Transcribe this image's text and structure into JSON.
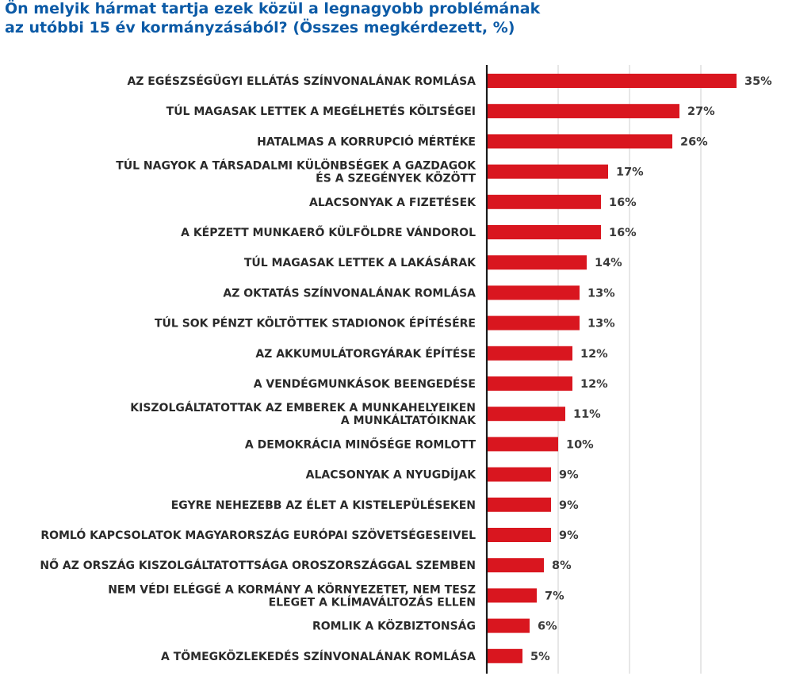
{
  "title_lines": [
    "Ön melyik hármat tartja ezek közül a legnagyobb problémának",
    "az utóbbi 15 év kormányzásából? (Összes megkérdezett, %)"
  ],
  "colors": {
    "bar": "#d9161f",
    "title": "#0b5aa6",
    "text": "#2a2a2a"
  },
  "chart_data": {
    "type": "bar",
    "orientation": "horizontal",
    "title": "Ön melyik hármat tartja ezek közül a legnagyobb problémának az utóbbi 15 év kormányzásából? (Összes megkérdezett, %)",
    "xlim": [
      0,
      35
    ],
    "grid": true,
    "categories": [
      [
        "AZ EGÉSZSÉGÜGYI ELLÁTÁS SZÍNVONALÁNAK ROMLÁSA"
      ],
      [
        "TÚL MAGASAK LETTEK A MEGÉLHETÉS KÖLTSÉGEI"
      ],
      [
        "HATALMAS A KORRUPCIÓ MÉRTÉKE"
      ],
      [
        "TÚL NAGYOK A TÁRSADALMI KÜLÖNBSÉGEK A GAZDAGOK",
        "ÉS A SZEGÉNYEK KÖZÖTT"
      ],
      [
        "ALACSONYAK A FIZETÉSEK"
      ],
      [
        "A KÉPZETT MUNKAERŐ KÜLFÖLDRE VÁNDOROL"
      ],
      [
        "TÚL MAGASAK LETTEK A LAKÁSÁRAK"
      ],
      [
        "AZ OKTATÁS SZÍNVONALÁNAK ROMLÁSA"
      ],
      [
        "TÚL SOK PÉNZT KÖLTÖTTEK STADIONOK ÉPÍTÉSÉRE"
      ],
      [
        "AZ AKKUMULÁTORGYÁRAK ÉPÍTÉSE"
      ],
      [
        "A VENDÉGMUNKÁSOK BEENGEDÉSE"
      ],
      [
        "KISZOLGÁLTATOTTAK AZ EMBEREK A MUNKAHELYEIKEN",
        "A MUNKÁLTATÓIKNAK"
      ],
      [
        "A DEMOKRÁCIA MINŐSÉGE ROMLOTT"
      ],
      [
        "ALACSONYAK A NYUGDÍJAK"
      ],
      [
        "EGYRE NEHEZEBB AZ ÉLET A KISTELEPÜLÉSEKEN"
      ],
      [
        "ROMLÓ KAPCSOLATOK MAGYARORSZÁG EURÓPAI SZÖVETSÉGESEIVEL"
      ],
      [
        "NŐ AZ ORSZÁG KISZOLGÁLTATOTTSÁGA OROSZORSZÁGGAL SZEMBEN"
      ],
      [
        "NEM VÉDI ELÉGGÉ A KORMÁNY A KÖRNYEZETET, NEM TESZ",
        "ELEGET A KLÍMAVÁLTOZÁS ELLEN"
      ],
      [
        "ROMLIK A KÖZBIZTONSÁG"
      ],
      [
        "A TÖMEGKÖZLEKEDÉS SZÍNVONALÁNAK ROMLÁSA"
      ]
    ],
    "values": [
      35,
      27,
      26,
      17,
      16,
      16,
      14,
      13,
      13,
      12,
      12,
      11,
      10,
      9,
      9,
      9,
      8,
      7,
      6,
      5
    ],
    "value_suffix": "%"
  }
}
